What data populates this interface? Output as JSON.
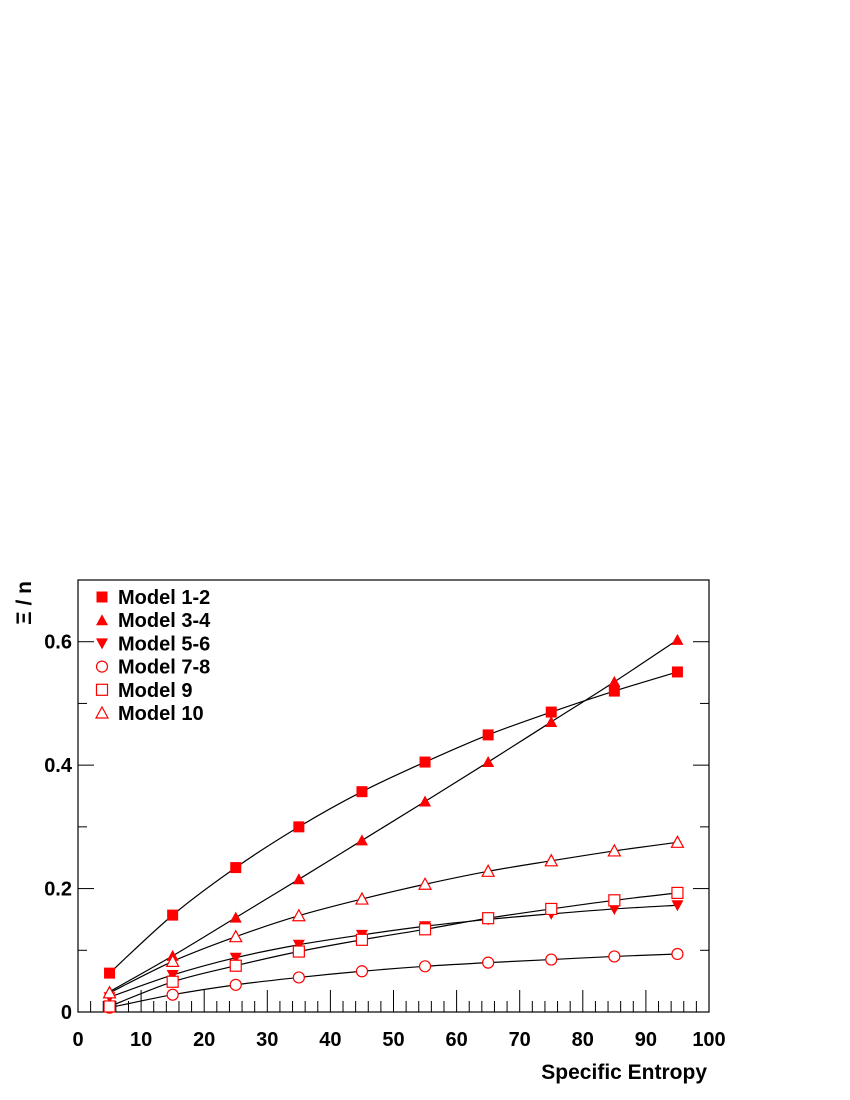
{
  "chart_data": {
    "type": "scatter",
    "title": "",
    "xlabel": "Specific Entropy",
    "ylabel": "Ξ / n",
    "xlim": [
      0,
      100
    ],
    "ylim": [
      0,
      0.7
    ],
    "x_ticks": [
      "0",
      "10",
      "20",
      "30",
      "40",
      "50",
      "60",
      "70",
      "80",
      "90",
      "100"
    ],
    "y_ticks": [
      "0",
      "0.2",
      "0.4",
      "0.6"
    ],
    "grid": false,
    "legend_position": "top-left",
    "marker_color": "#ff0000",
    "line_color": "#000000",
    "x": [
      5,
      15,
      25,
      35,
      45,
      55,
      65,
      75,
      85,
      95
    ],
    "series": [
      {
        "name": "Model 1-2",
        "marker": "square-filled",
        "values": [
          0.063,
          0.157,
          0.234,
          0.3,
          0.357,
          0.405,
          0.449,
          0.486,
          0.52,
          0.551
        ]
      },
      {
        "name": "Model 3-4",
        "marker": "triangle-up-filled",
        "values": [
          0.033,
          0.091,
          0.153,
          0.215,
          0.278,
          0.341,
          0.405,
          0.47,
          0.535,
          0.603
        ]
      },
      {
        "name": "Model 5-6",
        "marker": "triangle-down-filled",
        "values": [
          0.024,
          0.06,
          0.088,
          0.109,
          0.125,
          0.139,
          0.15,
          0.159,
          0.167,
          0.173
        ]
      },
      {
        "name": "Model 7-8",
        "marker": "circle-open",
        "values": [
          0.007,
          0.028,
          0.044,
          0.056,
          0.066,
          0.074,
          0.08,
          0.085,
          0.09,
          0.094
        ]
      },
      {
        "name": "Model 9",
        "marker": "square-open",
        "values": [
          0.009,
          0.049,
          0.075,
          0.098,
          0.117,
          0.134,
          0.152,
          0.167,
          0.181,
          0.193
        ]
      },
      {
        "name": "Model 10",
        "marker": "triangle-up-open",
        "values": [
          0.031,
          0.082,
          0.122,
          0.156,
          0.183,
          0.207,
          0.228,
          0.245,
          0.261,
          0.275
        ]
      }
    ]
  }
}
